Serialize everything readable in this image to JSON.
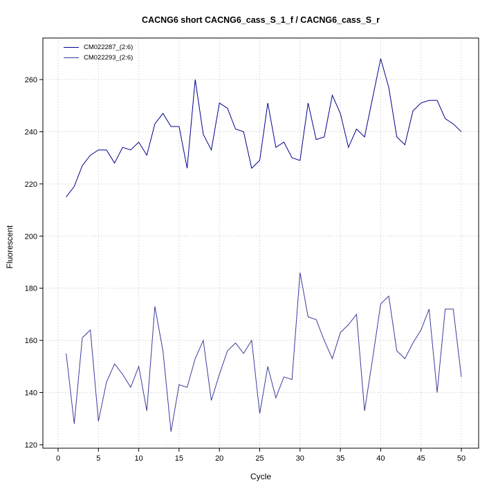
{
  "title": "CACNG6 short CACNG6_cass_S_1_f / CACNG6_cass_S_r",
  "chart_data": {
    "type": "line",
    "title": "CACNG6 short CACNG6_cass_S_1_f / CACNG6_cass_S_r",
    "xlabel": "Cycle",
    "ylabel": "Fluorescent",
    "xlim": [
      0,
      50
    ],
    "ylim": [
      120,
      260
    ],
    "x_ticks": [
      0,
      5,
      10,
      15,
      20,
      25,
      30,
      35,
      40,
      45,
      50
    ],
    "y_ticks": [
      120,
      140,
      160,
      180,
      200,
      220,
      240,
      260
    ],
    "grid": "dotted",
    "grid_color": "#bebebe",
    "legend_position": "top-left",
    "x": [
      1,
      2,
      3,
      4,
      5,
      6,
      7,
      8,
      9,
      10,
      11,
      12,
      13,
      14,
      15,
      16,
      17,
      18,
      19,
      20,
      21,
      22,
      23,
      24,
      25,
      26,
      27,
      28,
      29,
      30,
      31,
      32,
      33,
      34,
      35,
      36,
      37,
      38,
      39,
      40,
      41,
      42,
      43,
      44,
      45,
      46,
      47,
      48,
      49,
      50
    ],
    "series": [
      {
        "name": "CM022287_(2:6)",
        "color": "#00008B",
        "values": [
          215,
          219,
          227,
          231,
          233,
          233,
          228,
          234,
          233,
          236,
          231,
          243,
          247,
          242,
          242,
          226,
          260,
          239,
          233,
          251,
          249,
          241,
          240,
          226,
          229,
          251,
          234,
          236,
          230,
          229,
          251,
          237,
          238,
          254,
          247,
          234,
          241,
          238,
          253,
          268,
          257,
          238,
          235,
          248,
          251,
          252,
          252,
          245,
          243,
          240
        ]
      },
      {
        "name": "CM022293_(2:6)",
        "color": "#3A3A9E",
        "values": [
          155,
          128,
          161,
          164,
          129,
          144,
          151,
          147,
          142,
          150,
          133,
          173,
          156,
          125,
          143,
          142,
          153,
          160,
          137,
          147,
          156,
          159,
          155,
          160,
          132,
          150,
          138,
          146,
          145,
          186,
          169,
          168,
          160,
          153,
          163,
          166,
          170,
          133,
          153,
          174,
          177,
          156,
          153,
          159,
          164,
          172,
          140,
          172,
          172,
          146
        ]
      }
    ]
  }
}
